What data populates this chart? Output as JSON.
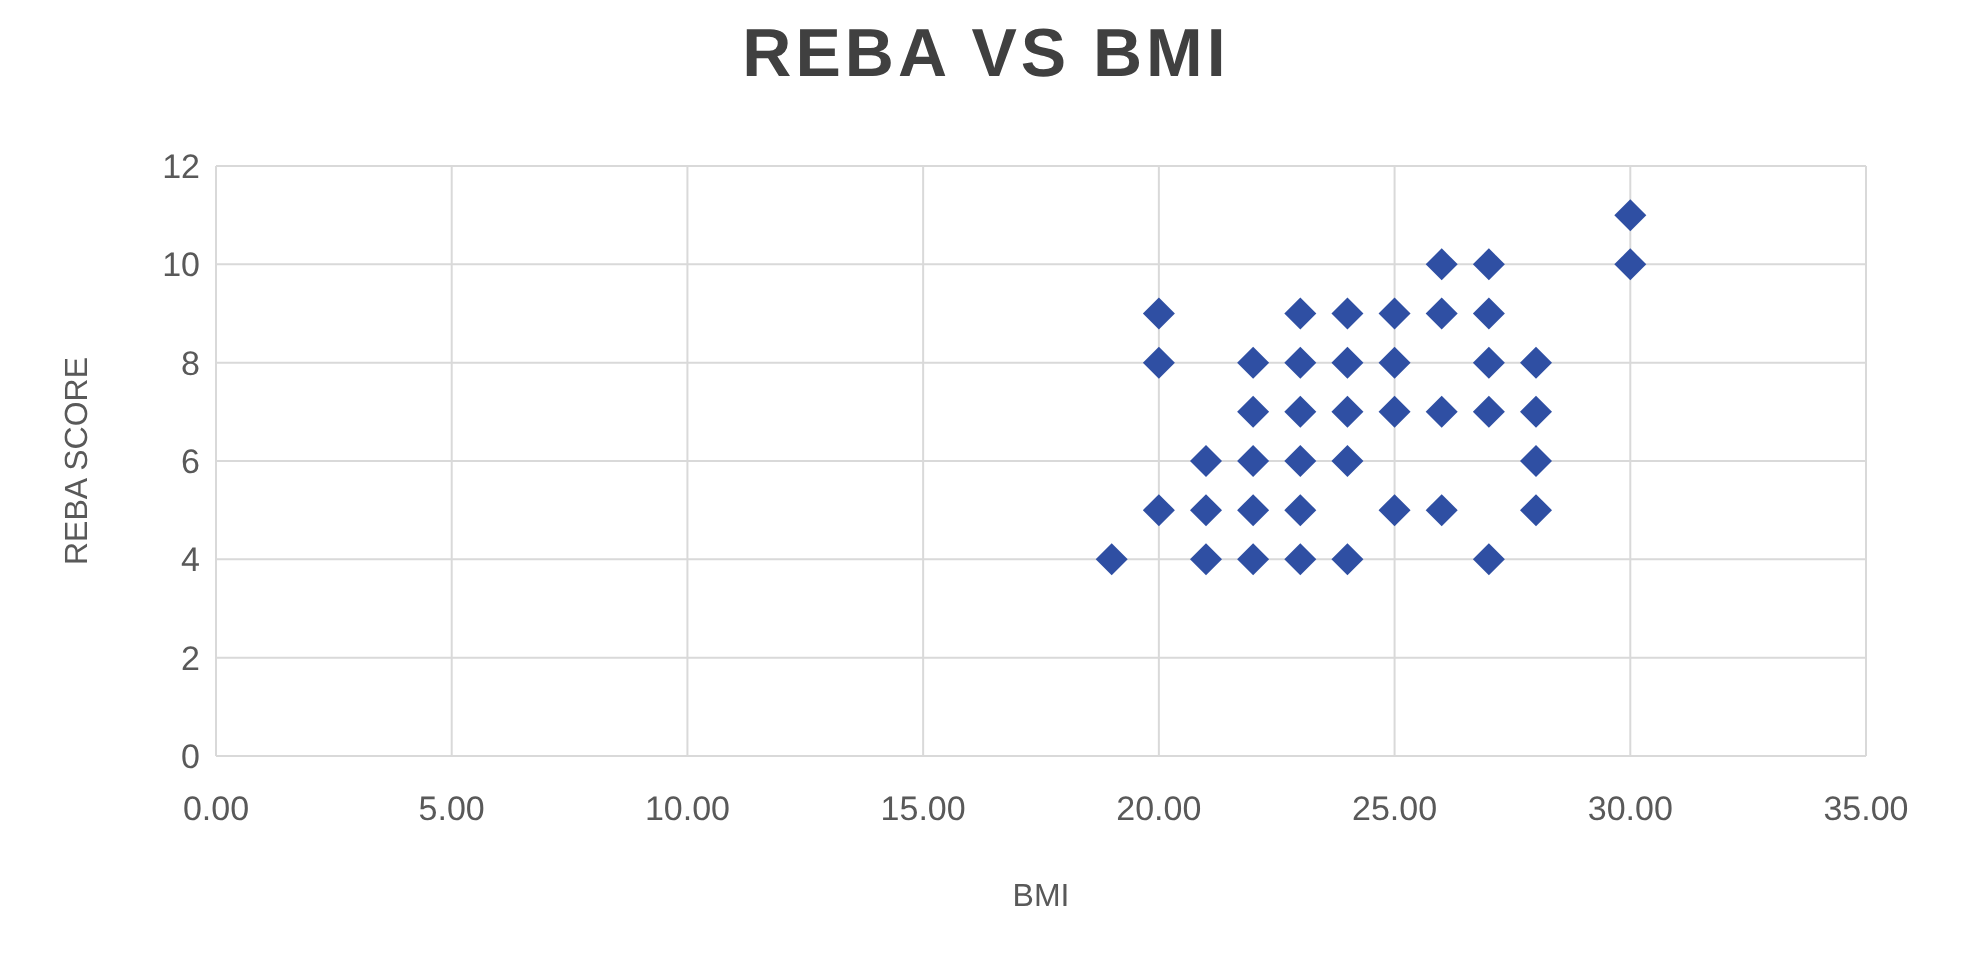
{
  "chart_data": {
    "type": "scatter",
    "title": "REBA VS BMI",
    "xlabel": "BMI",
    "ylabel": "REBA SCORE",
    "x": [
      19,
      20,
      20,
      20,
      21,
      21,
      21,
      22,
      22,
      22,
      22,
      22,
      23,
      23,
      23,
      23,
      23,
      23,
      24,
      24,
      24,
      24,
      24,
      25,
      25,
      25,
      25,
      26,
      26,
      26,
      26,
      27,
      27,
      27,
      27,
      27,
      28,
      28,
      28,
      28,
      30,
      30
    ],
    "values": [
      4,
      9,
      8,
      5,
      6,
      5,
      4,
      8,
      7,
      6,
      5,
      4,
      9,
      8,
      7,
      6,
      5,
      4,
      9,
      8,
      7,
      6,
      4,
      9,
      8,
      7,
      5,
      10,
      9,
      7,
      5,
      10,
      9,
      8,
      7,
      4,
      8,
      7,
      6,
      5,
      11,
      10
    ],
    "color": "#2f4fa3",
    "marker": "diamond",
    "grid": true,
    "legend": false,
    "xlim": [
      0,
      35
    ],
    "xticks": [
      {
        "value": 0,
        "label": "0.00"
      },
      {
        "value": 5,
        "label": "5.00"
      },
      {
        "value": 10,
        "label": "10.00"
      },
      {
        "value": 15,
        "label": "15.00"
      },
      {
        "value": 20,
        "label": "20.00"
      },
      {
        "value": 25,
        "label": "25.00"
      },
      {
        "value": 30,
        "label": "30.00"
      },
      {
        "value": 35,
        "label": "35.00"
      }
    ],
    "ylim": [
      0,
      12
    ],
    "yticks": [
      0,
      2,
      4,
      6,
      8,
      10,
      12
    ]
  }
}
